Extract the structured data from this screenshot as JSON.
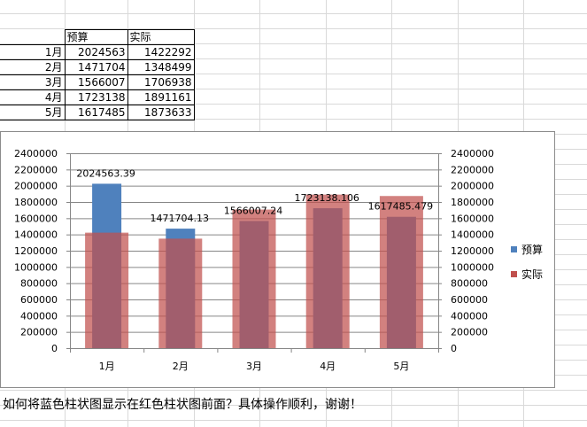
{
  "spreadsheet": {
    "headers": [
      "",
      "预算",
      "实际"
    ],
    "rows": [
      [
        "1月",
        "2024563",
        "1422292"
      ],
      [
        "2月",
        "1471704",
        "1348499"
      ],
      [
        "3月",
        "1566007",
        "1706938"
      ],
      [
        "4月",
        "1723138",
        "1891161"
      ],
      [
        "5月",
        "1617485",
        "1873633"
      ]
    ]
  },
  "chart_data": {
    "type": "bar",
    "categories": [
      "1月",
      "2月",
      "3月",
      "4月",
      "5月"
    ],
    "series": [
      {
        "name": "预算",
        "values": [
          2024563,
          1471704,
          1566007,
          1723138,
          1617485
        ],
        "color": "#4f81bd",
        "axis": "primary"
      },
      {
        "name": "实际",
        "values": [
          1422292,
          1348499,
          1706938,
          1891161,
          1873633
        ],
        "color": "#c0504d",
        "axis": "secondary"
      }
    ],
    "data_labels": [
      "2024563.39",
      "1471704.13",
      "1566007.24",
      "1723138.106",
      "1617485.479"
    ],
    "y_ticks": [
      "0",
      "200000",
      "400000",
      "600000",
      "800000",
      "1000000",
      "1200000",
      "1400000",
      "1600000",
      "1800000",
      "2000000",
      "2200000",
      "2400000"
    ],
    "ylim": [
      0,
      2400000
    ],
    "grid": true,
    "legend_position": "right"
  },
  "question": "如何将蓝色柱状图显示在红色柱状图前面？具体操作顺利，谢谢！"
}
